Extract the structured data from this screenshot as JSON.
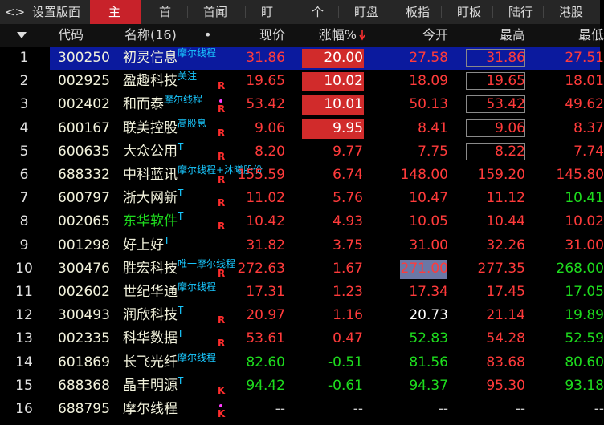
{
  "tabs": [
    "<>",
    "设置版面",
    "主",
    "首",
    "首闻",
    "盯",
    "个",
    "盯盘",
    "板指",
    "盯板",
    "陆行",
    "港股"
  ],
  "active_tab": 2,
  "header": {
    "code": "代码",
    "name": "名称(16)",
    "dot": "•",
    "price": "现价",
    "change": "涨幅%",
    "open": "今开",
    "high": "最高",
    "low": "最低"
  },
  "rows": [
    {
      "index": "1",
      "code": "300250",
      "name": "初灵信息",
      "tag": "摩尔线程",
      "price": "31.86",
      "change": "20.00",
      "open": "27.58",
      "high": "31.86",
      "low": "27.51",
      "colors": [
        "#ff3b3b",
        "#ffffff",
        "#ff3b3b",
        "#ff3b3b",
        "#ff3b3b"
      ],
      "selected": true,
      "change_box": true,
      "high_box": true
    },
    {
      "index": "2",
      "code": "002925",
      "name": "盈趣科技",
      "tag": "关注",
      "flag": "R",
      "price": "19.65",
      "change": "10.02",
      "open": "18.09",
      "high": "19.65",
      "low": "18.01",
      "colors": [
        "#ff3b3b",
        "#ffffff",
        "#ff3b3b",
        "#ff3b3b",
        "#ff3b3b"
      ],
      "change_box": true,
      "high_box": true
    },
    {
      "index": "3",
      "code": "002402",
      "name": "和而泰",
      "tag": "摩尔线程",
      "flag": "R",
      "dot": true,
      "price": "53.42",
      "change": "10.01",
      "open": "50.13",
      "high": "53.42",
      "low": "49.62",
      "colors": [
        "#ff3b3b",
        "#ffffff",
        "#ff3b3b",
        "#ff3b3b",
        "#ff3b3b"
      ],
      "change_box": true,
      "high_box": true
    },
    {
      "index": "4",
      "code": "600167",
      "name": "联美控股",
      "tag": "高股息",
      "flag": "R",
      "price": "9.06",
      "change": "9.95",
      "open": "8.41",
      "high": "9.06",
      "low": "8.37",
      "colors": [
        "#ff3b3b",
        "#ffffff",
        "#ff3b3b",
        "#ff3b3b",
        "#ff3b3b"
      ],
      "change_box": true,
      "high_box": true
    },
    {
      "index": "5",
      "code": "600635",
      "name": "大众公用",
      "tag": "T",
      "flag": "R",
      "price": "8.20",
      "change": "9.77",
      "open": "7.75",
      "high": "8.22",
      "low": "7.74",
      "colors": [
        "#ff3b3b",
        "#ff3b3b",
        "#ff3b3b",
        "#ff3b3b",
        "#ff3b3b"
      ],
      "high_box": true
    },
    {
      "index": "6",
      "code": "688332",
      "name": "中科蓝讯",
      "tag": "摩尔线程+沐曦股份",
      "flag": "R",
      "price": "155.59",
      "change": "6.74",
      "open": "148.00",
      "high": "159.20",
      "low": "145.80",
      "colors": [
        "#ff3b3b",
        "#ff3b3b",
        "#ff3b3b",
        "#ff3b3b",
        "#ff3b3b"
      ]
    },
    {
      "index": "7",
      "code": "600797",
      "name": "浙大网新",
      "tag": "T",
      "flag": "R",
      "price": "11.02",
      "change": "5.76",
      "open": "10.47",
      "high": "11.12",
      "low": "10.41",
      "colors": [
        "#ff3b3b",
        "#ff3b3b",
        "#ff3b3b",
        "#ff3b3b",
        "#1edc1e"
      ]
    },
    {
      "index": "8",
      "code": "002065",
      "name": "东华软件",
      "name_color": "#1edc1e",
      "tag": "T",
      "flag": "R",
      "price": "10.42",
      "change": "4.93",
      "open": "10.05",
      "high": "10.44",
      "low": "10.02",
      "colors": [
        "#ff3b3b",
        "#ff3b3b",
        "#ff3b3b",
        "#ff3b3b",
        "#ff3b3b"
      ]
    },
    {
      "index": "9",
      "code": "001298",
      "name": "好上好",
      "tag": "T",
      "price": "31.82",
      "change": "3.75",
      "open": "31.00",
      "high": "32.26",
      "low": "31.00",
      "colors": [
        "#ff3b3b",
        "#ff3b3b",
        "#ff3b3b",
        "#ff3b3b",
        "#ff3b3b"
      ]
    },
    {
      "index": "10",
      "code": "300476",
      "name": "胜宏科技",
      "tag": "唯一摩尔线程",
      "flag": "R",
      "price": "272.63",
      "change": "1.67",
      "open": "271.00",
      "high": "277.35",
      "low": "268.00",
      "colors": [
        "#ff3b3b",
        "#ff3b3b",
        "#ff3b3b",
        "#ff3b3b",
        "#1edc1e"
      ],
      "open_highlight": true
    },
    {
      "index": "11",
      "code": "002602",
      "name": "世纪华通",
      "tag": "摩尔线程",
      "price": "17.31",
      "change": "1.23",
      "open": "17.34",
      "high": "17.45",
      "low": "17.05",
      "colors": [
        "#ff3b3b",
        "#ff3b3b",
        "#ff3b3b",
        "#ff3b3b",
        "#1edc1e"
      ]
    },
    {
      "index": "12",
      "code": "300493",
      "name": "润欣科技",
      "tag": "T",
      "flag": "R",
      "price": "20.97",
      "change": "1.16",
      "open": "20.73",
      "high": "21.14",
      "low": "19.89",
      "colors": [
        "#ff3b3b",
        "#ff3b3b",
        "#ffffff",
        "#ff3b3b",
        "#1edc1e"
      ]
    },
    {
      "index": "13",
      "code": "002335",
      "name": "科华数据",
      "tag": "T",
      "flag": "R",
      "price": "53.61",
      "change": "0.47",
      "open": "52.83",
      "high": "54.28",
      "low": "52.59",
      "colors": [
        "#ff3b3b",
        "#ff3b3b",
        "#1edc1e",
        "#ff3b3b",
        "#1edc1e"
      ]
    },
    {
      "index": "14",
      "code": "601869",
      "name": "长飞光纤",
      "tag": "摩尔线程",
      "price": "82.60",
      "change": "-0.51",
      "open": "81.56",
      "high": "83.68",
      "low": "80.60",
      "colors": [
        "#1edc1e",
        "#1edc1e",
        "#1edc1e",
        "#ff3b3b",
        "#1edc1e"
      ]
    },
    {
      "index": "15",
      "code": "688368",
      "name": "晶丰明源",
      "tag": "T",
      "flag": "K",
      "price": "94.42",
      "change": "-0.61",
      "open": "94.37",
      "high": "95.30",
      "low": "93.18",
      "colors": [
        "#1edc1e",
        "#1edc1e",
        "#1edc1e",
        "#ff3b3b",
        "#1edc1e"
      ]
    },
    {
      "index": "16",
      "code": "688795",
      "name": "摩尔线程",
      "flag": "K",
      "dot": true,
      "price": "--",
      "change": "--",
      "open": "--",
      "high": "--",
      "low": "--",
      "colors": [
        "#cccccc",
        "#cccccc",
        "#cccccc",
        "#cccccc",
        "#cccccc"
      ]
    }
  ]
}
